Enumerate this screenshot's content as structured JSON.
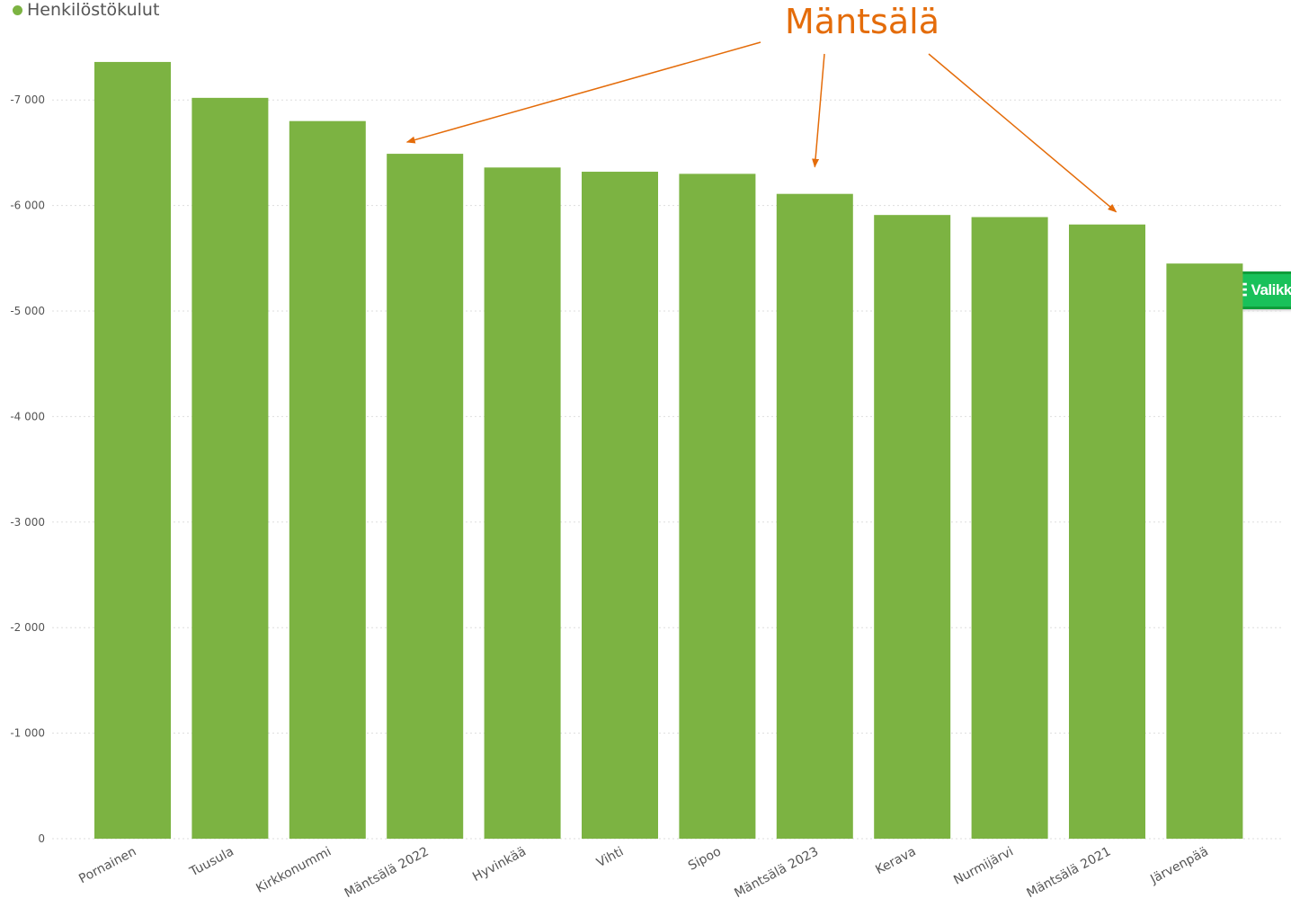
{
  "legend": {
    "label": "Henkilöstökulut",
    "color": "#7cb342"
  },
  "annotation": {
    "text": "Mäntsälä",
    "color": "#e46c0a"
  },
  "menu_button": {
    "icon": "hamburger-icon",
    "label": "Valikko"
  },
  "chart_data": {
    "type": "bar",
    "categories": [
      "Pornainen",
      "Tuusula",
      "Kirkkonummi",
      "Mäntsälä 2022",
      "Hyvinkää",
      "Vihti",
      "Sipoo",
      "Mäntsälä 2023",
      "Kerava",
      "Nurmijärvi",
      "Mäntsälä 2021",
      "Järvenpää"
    ],
    "series": [
      {
        "name": "Henkilöstökulut",
        "values": [
          -7360,
          -7020,
          -6800,
          -6490,
          -6360,
          -6320,
          -6300,
          -6110,
          -5910,
          -5890,
          -5820,
          -5450
        ]
      }
    ],
    "yticks": [
      {
        "value": 0,
        "label": "0"
      },
      {
        "value": -1000,
        "label": "-1 000"
      },
      {
        "value": -2000,
        "label": "-2 000"
      },
      {
        "value": -3000,
        "label": "-3 000"
      },
      {
        "value": -4000,
        "label": "-4 000"
      },
      {
        "value": -5000,
        "label": "-5 000"
      },
      {
        "value": -6000,
        "label": "-6 000"
      },
      {
        "value": -7000,
        "label": "-7 000"
      }
    ],
    "ylim": [
      0,
      -7500
    ],
    "y_reversed": true,
    "bar_color": "#7cb342",
    "grid": true,
    "legend_position": "top-left",
    "annotated_categories": [
      "Mäntsälä 2022",
      "Mäntsälä 2023",
      "Mäntsälä 2021"
    ]
  }
}
